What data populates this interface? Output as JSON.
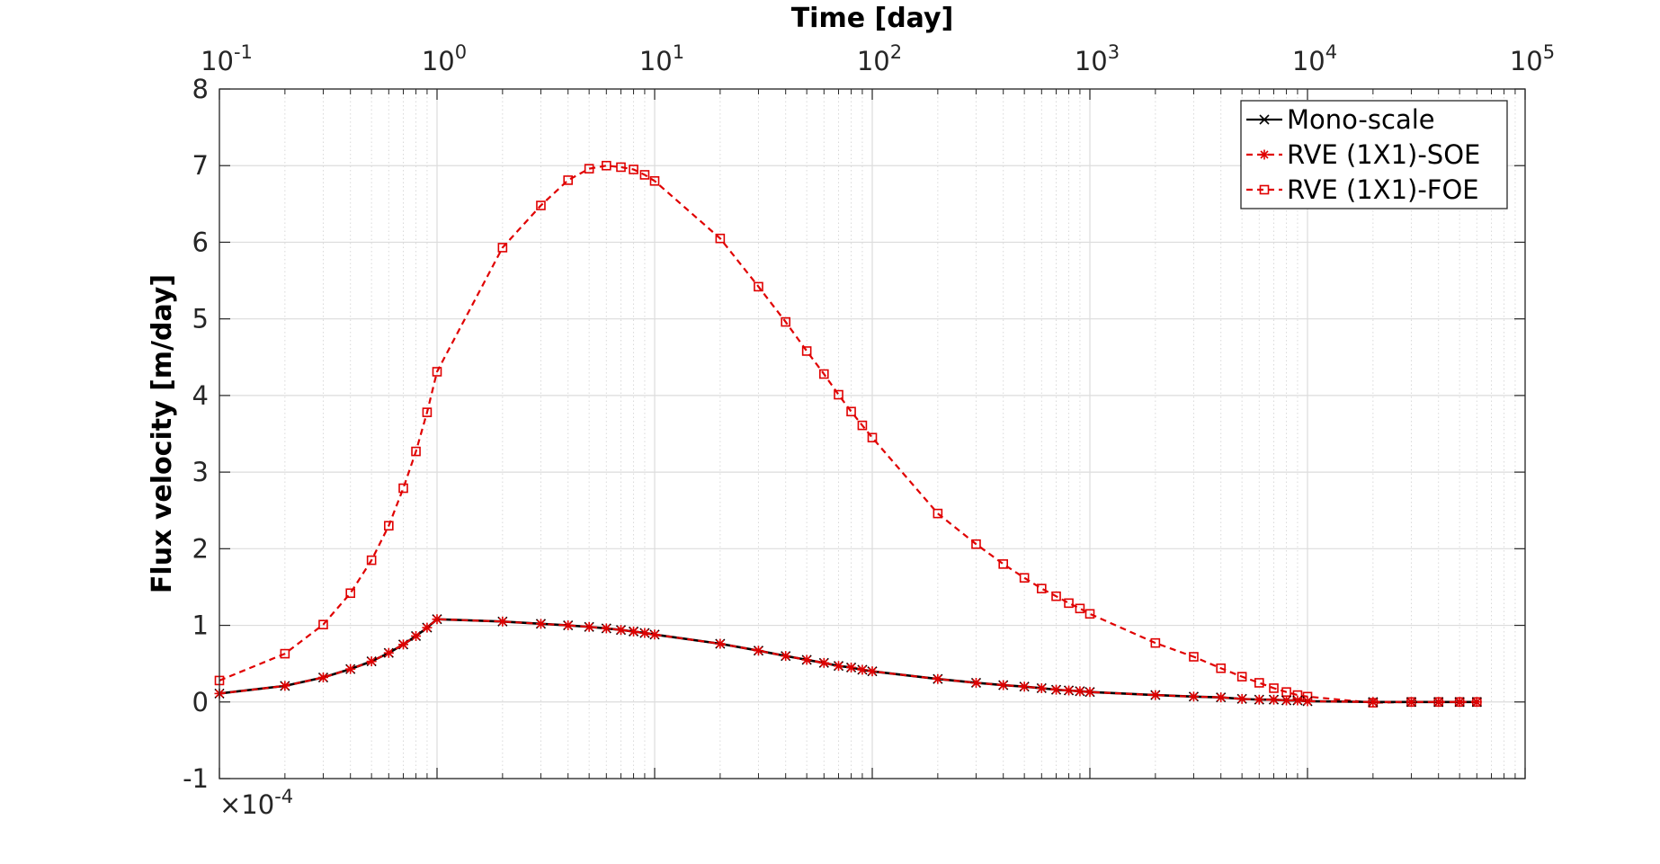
{
  "chart_data": {
    "type": "line",
    "xlabel": "Time [day]",
    "ylabel": "Flux velocity [m/day]",
    "x_scale": "log",
    "xlim": [
      0.1,
      100000
    ],
    "ylim": [
      -1,
      8
    ],
    "x_ticks": [
      0.1,
      1,
      10,
      100,
      1000,
      10000,
      100000
    ],
    "x_tick_labels": [
      {
        "base": "10",
        "exp": "-1"
      },
      {
        "base": "10",
        "exp": "0"
      },
      {
        "base": "10",
        "exp": "1"
      },
      {
        "base": "10",
        "exp": "2"
      },
      {
        "base": "10",
        "exp": "3"
      },
      {
        "base": "10",
        "exp": "4"
      },
      {
        "base": "10",
        "exp": "5"
      }
    ],
    "y_ticks": [
      -1,
      0,
      1,
      2,
      3,
      4,
      5,
      6,
      7,
      8
    ],
    "y_tick_labels": [
      "-1",
      "0",
      "1",
      "2",
      "3",
      "4",
      "5",
      "6",
      "7",
      "8"
    ],
    "y_multiplier": {
      "base": "×10",
      "exp": "-4"
    },
    "grid": true,
    "legend_position": "top-right",
    "x": [
      0.1,
      0.2,
      0.3,
      0.4,
      0.5,
      0.6,
      0.7,
      0.8,
      0.9,
      1,
      2,
      3,
      4,
      5,
      6,
      7,
      8,
      9,
      10,
      20,
      30,
      40,
      50,
      60,
      70,
      80,
      90,
      100,
      200,
      300,
      400,
      500,
      600,
      700,
      800,
      900,
      1000,
      2000,
      3000,
      4000,
      5000,
      6000,
      7000,
      8000,
      9000,
      10000,
      20000,
      30000,
      40000,
      50000,
      60000
    ],
    "series": [
      {
        "name": "Mono-scale",
        "color": "#000000",
        "line": "solid",
        "marker": "x",
        "values": [
          0.11,
          0.21,
          0.32,
          0.43,
          0.53,
          0.64,
          0.75,
          0.86,
          0.97,
          1.08,
          1.05,
          1.02,
          1.0,
          0.98,
          0.96,
          0.94,
          0.92,
          0.9,
          0.88,
          0.76,
          0.67,
          0.6,
          0.55,
          0.51,
          0.47,
          0.45,
          0.42,
          0.4,
          0.3,
          0.25,
          0.22,
          0.2,
          0.18,
          0.16,
          0.15,
          0.14,
          0.13,
          0.09,
          0.07,
          0.06,
          0.04,
          0.03,
          0.03,
          0.02,
          0.02,
          0.01,
          0.0,
          0.0,
          0.0,
          0.0,
          0.0
        ]
      },
      {
        "name": "RVE (1X1)-SOE",
        "color": "#e00000",
        "line": "dashed",
        "marker": "*",
        "values": [
          0.11,
          0.21,
          0.32,
          0.43,
          0.53,
          0.64,
          0.75,
          0.86,
          0.97,
          1.08,
          1.05,
          1.02,
          1.0,
          0.98,
          0.96,
          0.94,
          0.92,
          0.9,
          0.88,
          0.76,
          0.67,
          0.6,
          0.55,
          0.51,
          0.47,
          0.45,
          0.42,
          0.4,
          0.3,
          0.25,
          0.22,
          0.2,
          0.18,
          0.16,
          0.15,
          0.14,
          0.13,
          0.09,
          0.07,
          0.06,
          0.04,
          0.03,
          0.03,
          0.02,
          0.02,
          0.01,
          0.0,
          0.0,
          0.0,
          0.0,
          0.0
        ]
      },
      {
        "name": "RVE (1X1)-FOE",
        "color": "#e00000",
        "line": "dashed",
        "marker": "square",
        "values": [
          0.28,
          0.63,
          1.01,
          1.42,
          1.85,
          2.3,
          2.79,
          3.27,
          3.78,
          4.31,
          5.93,
          6.48,
          6.81,
          6.96,
          7.0,
          6.98,
          6.95,
          6.88,
          6.8,
          6.05,
          5.42,
          4.96,
          4.58,
          4.28,
          4.01,
          3.79,
          3.61,
          3.45,
          2.46,
          2.06,
          1.8,
          1.62,
          1.48,
          1.38,
          1.29,
          1.22,
          1.15,
          0.77,
          0.59,
          0.44,
          0.33,
          0.25,
          0.18,
          0.13,
          0.09,
          0.07,
          -0.01,
          0.0,
          0.0,
          0.0,
          0.0
        ]
      }
    ]
  }
}
